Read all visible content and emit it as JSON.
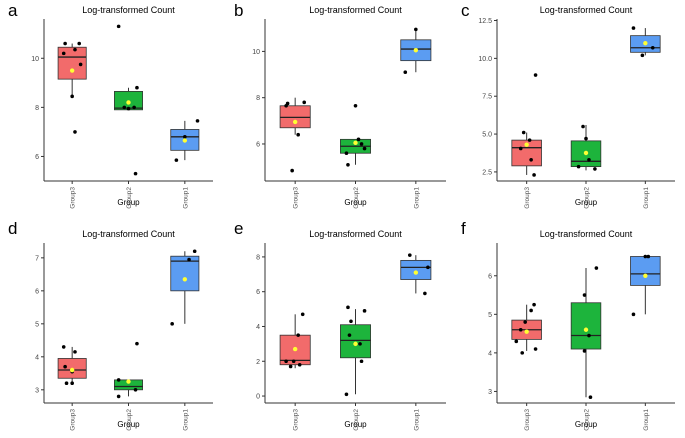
{
  "colors": {
    "group3": "#f26b6b",
    "group2": "#1db43c",
    "group1": "#5b9cf2",
    "mean_marker": "#ffff33",
    "point": "#000000",
    "axis": "#333333"
  },
  "chart_data": [
    {
      "type": "box",
      "panel_letter": "a",
      "title": "Log-transformed Count",
      "xlabel": "Group",
      "ylabel": "",
      "categories": [
        "Group3",
        "Group2",
        "Group1"
      ],
      "ylim": [
        5.0,
        11.6
      ],
      "yticks": [
        6,
        8,
        10
      ],
      "ytick_labels": [
        "6",
        "8",
        "10"
      ],
      "boxes": [
        {
          "q1": 9.15,
          "median": 10.05,
          "q3": 10.45,
          "whisker_low": 8.45,
          "whisker_high": 10.6,
          "mean": 9.5
        },
        {
          "q1": 7.9,
          "median": 7.97,
          "q3": 8.65,
          "whisker_low": 7.9,
          "whisker_high": 8.8,
          "mean": 8.2
        },
        {
          "q1": 6.25,
          "median": 6.8,
          "q3": 7.1,
          "whisker_low": 5.85,
          "whisker_high": 7.45,
          "mean": 6.65
        }
      ],
      "points": [
        [
          {
            "dx": -0.3,
            "y": 10.2
          },
          {
            "dx": -0.25,
            "y": 10.6
          },
          {
            "dx": 0.1,
            "y": 10.35
          },
          {
            "dx": 0.25,
            "y": 10.6
          },
          {
            "dx": 0.3,
            "y": 9.75
          },
          {
            "dx": 0.0,
            "y": 8.45
          },
          {
            "dx": 0.1,
            "y": 7.0
          }
        ],
        [
          {
            "dx": -0.35,
            "y": 11.3
          },
          {
            "dx": -0.15,
            "y": 8.0
          },
          {
            "dx": 0.0,
            "y": 7.95
          },
          {
            "dx": 0.2,
            "y": 8.0
          },
          {
            "dx": 0.3,
            "y": 8.8
          },
          {
            "dx": 0.25,
            "y": 5.3
          }
        ],
        [
          {
            "dx": -0.3,
            "y": 5.85
          },
          {
            "dx": 0.0,
            "y": 6.8
          },
          {
            "dx": 0.45,
            "y": 7.45
          }
        ]
      ]
    },
    {
      "type": "box",
      "panel_letter": "b",
      "title": "Log-transformed Count",
      "xlabel": "Group",
      "ylabel": "",
      "categories": [
        "Group3",
        "Group2",
        "Group1"
      ],
      "ylim": [
        4.4,
        11.4
      ],
      "yticks": [
        6,
        8,
        10
      ],
      "ytick_labels": [
        "6",
        "8",
        "10"
      ],
      "boxes": [
        {
          "q1": 6.7,
          "median": 7.15,
          "q3": 7.65,
          "whisker_low": 6.4,
          "whisker_high": 8.0,
          "mean": 6.95
        },
        {
          "q1": 5.6,
          "median": 5.9,
          "q3": 6.2,
          "whisker_low": 5.1,
          "whisker_high": 6.2,
          "mean": 6.05
        },
        {
          "q1": 9.6,
          "median": 10.1,
          "q3": 10.5,
          "whisker_low": 9.1,
          "whisker_high": 10.95,
          "mean": 10.05
        }
      ],
      "points": [
        [
          {
            "dx": -0.3,
            "y": 7.65
          },
          {
            "dx": -0.25,
            "y": 7.75
          },
          {
            "dx": -0.1,
            "y": 4.85
          },
          {
            "dx": 0.1,
            "y": 6.4
          },
          {
            "dx": 0.3,
            "y": 7.8
          }
        ],
        [
          {
            "dx": -0.3,
            "y": 5.6
          },
          {
            "dx": -0.25,
            "y": 5.1
          },
          {
            "dx": 0.0,
            "y": 7.65
          },
          {
            "dx": 0.1,
            "y": 6.2
          },
          {
            "dx": 0.2,
            "y": 6.0
          },
          {
            "dx": 0.3,
            "y": 5.8
          }
        ],
        [
          {
            "dx": -0.35,
            "y": 9.1
          },
          {
            "dx": 0.0,
            "y": 10.95
          }
        ]
      ]
    },
    {
      "type": "box",
      "panel_letter": "c",
      "title": "Log-transformed Count",
      "xlabel": "Group",
      "ylabel": "",
      "categories": [
        "Group3",
        "Group2",
        "Group1"
      ],
      "ylim": [
        1.9,
        12.6
      ],
      "yticks": [
        2.5,
        5.0,
        7.5,
        10.0,
        12.5
      ],
      "ytick_labels": [
        "2.5",
        "5.0",
        "7.5",
        "10.0",
        "12.5"
      ],
      "boxes": [
        {
          "q1": 2.9,
          "median": 4.1,
          "q3": 4.6,
          "whisker_low": 2.3,
          "whisker_high": 5.1,
          "mean": 4.3
        },
        {
          "q1": 2.85,
          "median": 3.2,
          "q3": 4.55,
          "whisker_low": 2.6,
          "whisker_high": 5.6,
          "mean": 3.75
        },
        {
          "q1": 10.4,
          "median": 10.7,
          "q3": 11.5,
          "whisker_low": 10.2,
          "whisker_high": 12.0,
          "mean": 11.0
        }
      ],
      "points": [
        [
          {
            "dx": -0.2,
            "y": 4.05
          },
          {
            "dx": -0.1,
            "y": 5.1
          },
          {
            "dx": 0.15,
            "y": 3.3
          },
          {
            "dx": 0.25,
            "y": 2.3
          },
          {
            "dx": 0.3,
            "y": 8.9
          },
          {
            "dx": 0.1,
            "y": 4.6
          }
        ],
        [
          {
            "dx": -0.25,
            "y": 2.85
          },
          {
            "dx": -0.1,
            "y": 5.5
          },
          {
            "dx": 0.0,
            "y": 4.7
          },
          {
            "dx": 0.1,
            "y": 3.3
          },
          {
            "dx": 0.3,
            "y": 2.7
          }
        ],
        [
          {
            "dx": -0.4,
            "y": 12.0
          },
          {
            "dx": -0.1,
            "y": 10.2
          },
          {
            "dx": 0.25,
            "y": 10.7
          }
        ]
      ]
    },
    {
      "type": "box",
      "panel_letter": "d",
      "title": "Log-transformed Count",
      "xlabel": "Group",
      "ylabel": "",
      "categories": [
        "Group3",
        "Group2",
        "Group1"
      ],
      "ylim": [
        2.6,
        7.45
      ],
      "yticks": [
        3,
        4,
        5,
        6,
        7
      ],
      "ytick_labels": [
        "3",
        "4",
        "5",
        "6",
        "7"
      ],
      "boxes": [
        {
          "q1": 3.35,
          "median": 3.6,
          "q3": 3.95,
          "whisker_low": 3.2,
          "whisker_high": 4.3,
          "mean": 3.6
        },
        {
          "q1": 3.0,
          "median": 3.1,
          "q3": 3.3,
          "whisker_low": 2.8,
          "whisker_high": 3.3,
          "mean": 3.25
        },
        {
          "q1": 6.0,
          "median": 6.9,
          "q3": 7.05,
          "whisker_low": 5.0,
          "whisker_high": 7.2,
          "mean": 6.35
        }
      ],
      "points": [
        [
          {
            "dx": -0.3,
            "y": 4.3
          },
          {
            "dx": -0.25,
            "y": 3.7
          },
          {
            "dx": -0.2,
            "y": 3.2
          },
          {
            "dx": 0.0,
            "y": 3.55
          },
          {
            "dx": 0.0,
            "y": 3.2
          },
          {
            "dx": 0.1,
            "y": 4.15
          }
        ],
        [
          {
            "dx": -0.35,
            "y": 2.8
          },
          {
            "dx": -0.35,
            "y": 3.3
          },
          {
            "dx": 0.0,
            "y": 3.25
          },
          {
            "dx": 0.3,
            "y": 4.4
          },
          {
            "dx": 0.25,
            "y": 3.0
          }
        ],
        [
          {
            "dx": -0.45,
            "y": 5.0
          },
          {
            "dx": 0.15,
            "y": 6.95
          },
          {
            "dx": 0.35,
            "y": 7.2
          }
        ]
      ]
    },
    {
      "type": "box",
      "panel_letter": "e",
      "title": "Log-transformed Count",
      "xlabel": "Group",
      "ylabel": "",
      "categories": [
        "Group3",
        "Group2",
        "Group1"
      ],
      "ylim": [
        -0.4,
        8.8
      ],
      "yticks": [
        0,
        2,
        4,
        6,
        8
      ],
      "ytick_labels": [
        "0",
        "2",
        "4",
        "6",
        "8"
      ],
      "boxes": [
        {
          "q1": 1.8,
          "median": 2.05,
          "q3": 3.5,
          "whisker_low": 1.6,
          "whisker_high": 4.7,
          "mean": 2.7
        },
        {
          "q1": 2.2,
          "median": 3.2,
          "q3": 4.1,
          "whisker_low": 0.1,
          "whisker_high": 5.0,
          "mean": 3.0
        },
        {
          "q1": 6.7,
          "median": 7.4,
          "q3": 7.8,
          "whisker_low": 5.9,
          "whisker_high": 8.1,
          "mean": 7.1
        }
      ],
      "points": [
        [
          {
            "dx": -0.3,
            "y": 2.0
          },
          {
            "dx": -0.15,
            "y": 1.7
          },
          {
            "dx": -0.05,
            "y": 2.0
          },
          {
            "dx": 0.1,
            "y": 3.5
          },
          {
            "dx": 0.15,
            "y": 1.8
          },
          {
            "dx": 0.25,
            "y": 4.7
          }
        ],
        [
          {
            "dx": -0.3,
            "y": 0.1
          },
          {
            "dx": -0.25,
            "y": 5.1
          },
          {
            "dx": -0.2,
            "y": 3.5
          },
          {
            "dx": -0.15,
            "y": 4.3
          },
          {
            "dx": 0.15,
            "y": 3.0
          },
          {
            "dx": 0.2,
            "y": 2.0
          },
          {
            "dx": 0.3,
            "y": 4.9
          }
        ],
        [
          {
            "dx": -0.2,
            "y": 8.1
          },
          {
            "dx": 0.3,
            "y": 5.9
          },
          {
            "dx": 0.4,
            "y": 7.4
          }
        ]
      ]
    },
    {
      "type": "box",
      "panel_letter": "f",
      "title": "Log-transformed Count",
      "xlabel": "Group",
      "ylabel": "",
      "categories": [
        "Group3",
        "Group2",
        "Group1"
      ],
      "ylim": [
        2.7,
        6.85
      ],
      "yticks": [
        3,
        4,
        5,
        6
      ],
      "ytick_labels": [
        "3",
        "4",
        "5",
        "6"
      ],
      "boxes": [
        {
          "q1": 4.35,
          "median": 4.6,
          "q3": 4.85,
          "whisker_low": 4.05,
          "whisker_high": 5.25,
          "mean": 4.55
        },
        {
          "q1": 4.1,
          "median": 4.45,
          "q3": 5.3,
          "whisker_low": 2.85,
          "whisker_high": 6.2,
          "mean": 4.6
        },
        {
          "q1": 5.75,
          "median": 6.05,
          "q3": 6.5,
          "whisker_low": 5.0,
          "whisker_high": 6.5,
          "mean": 6.0
        }
      ],
      "points": [
        [
          {
            "dx": -0.35,
            "y": 4.3
          },
          {
            "dx": -0.2,
            "y": 4.6
          },
          {
            "dx": -0.05,
            "y": 4.8
          },
          {
            "dx": 0.15,
            "y": 5.1
          },
          {
            "dx": 0.25,
            "y": 5.25
          },
          {
            "dx": 0.3,
            "y": 4.1
          },
          {
            "dx": -0.15,
            "y": 4.0
          }
        ],
        [
          {
            "dx": -0.05,
            "y": 5.5
          },
          {
            "dx": -0.05,
            "y": 4.05
          },
          {
            "dx": 0.1,
            "y": 4.45
          },
          {
            "dx": 0.15,
            "y": 2.85
          },
          {
            "dx": 0.35,
            "y": 6.2
          }
        ],
        [
          {
            "dx": -0.4,
            "y": 5.0
          },
          {
            "dx": 0.0,
            "y": 6.5
          },
          {
            "dx": 0.1,
            "y": 6.5
          }
        ]
      ]
    }
  ]
}
